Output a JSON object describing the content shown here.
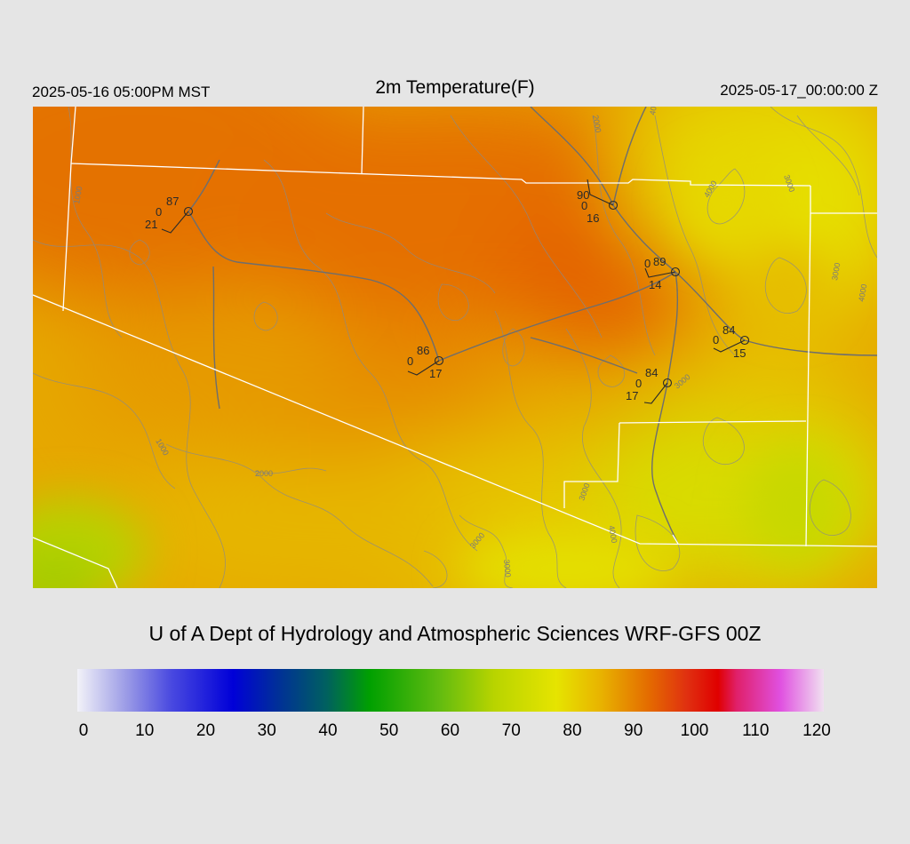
{
  "header": {
    "local_time": "2025-05-16 05:00PM MST",
    "title": "2m Temperature(F)",
    "utc_time": "2025-05-17_00:00:00 Z"
  },
  "credit": "U of A Dept of Hydrology and Atmospheric Sciences WRF-GFS 00Z",
  "colorbar": {
    "labels": [
      "0",
      "10",
      "20",
      "30",
      "40",
      "50",
      "60",
      "70",
      "80",
      "90",
      "100",
      "110",
      "120"
    ],
    "min": 0,
    "max": 120,
    "stops": [
      {
        "value": 0,
        "color": "#f2f2f8"
      },
      {
        "value": 8,
        "color": "#9a9ae6"
      },
      {
        "value": 15,
        "color": "#4a4ae0"
      },
      {
        "value": 25,
        "color": "#0000d8"
      },
      {
        "value": 32,
        "color": "#002e9a"
      },
      {
        "value": 40,
        "color": "#006060"
      },
      {
        "value": 47,
        "color": "#00a000"
      },
      {
        "value": 58,
        "color": "#60bb10"
      },
      {
        "value": 67,
        "color": "#b8d400"
      },
      {
        "value": 77,
        "color": "#e6e400"
      },
      {
        "value": 84,
        "color": "#e8b400"
      },
      {
        "value": 92,
        "color": "#e46a00"
      },
      {
        "value": 98,
        "color": "#e03010"
      },
      {
        "value": 103,
        "color": "#e00000"
      },
      {
        "value": 106,
        "color": "#e0206a"
      },
      {
        "value": 113,
        "color": "#e050e0"
      },
      {
        "value": 120,
        "color": "#f0e0f0"
      }
    ]
  },
  "map": {
    "contour_labels": [
      "1000",
      "1000",
      "2000",
      "2000",
      "3000",
      "3000",
      "3000",
      "3000",
      "4000",
      "4000",
      "4000",
      "4000",
      "3000",
      "3000"
    ],
    "stations": [
      {
        "temp": "87",
        "dew": "21",
        "pressure": "0"
      },
      {
        "temp": "90",
        "dew": "16",
        "pressure": "0"
      },
      {
        "temp": "89",
        "dew": "14",
        "pressure": "0"
      },
      {
        "temp": "84",
        "dew": "15",
        "pressure": "0"
      },
      {
        "temp": "86",
        "dew": "17",
        "pressure": "0"
      },
      {
        "temp": "84",
        "dew": "17",
        "pressure": "0"
      }
    ]
  }
}
